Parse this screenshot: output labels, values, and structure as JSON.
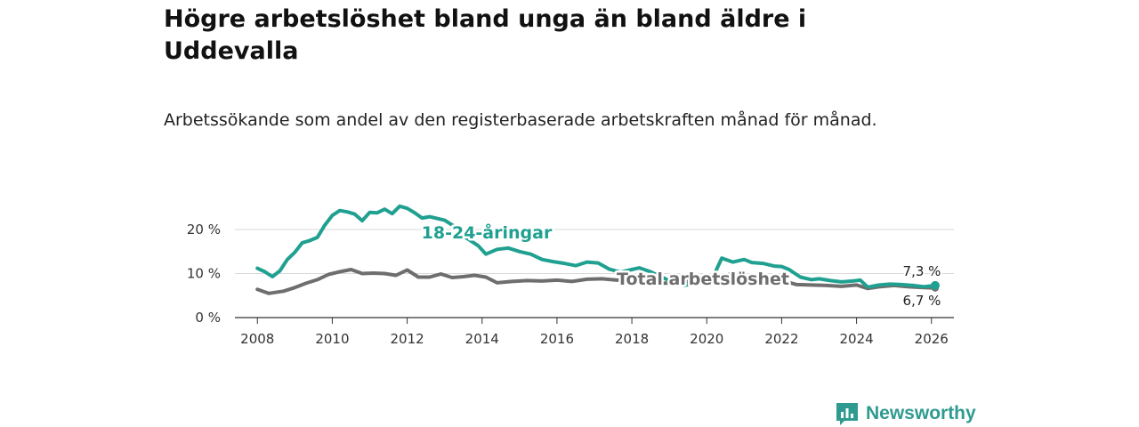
{
  "chart_data": {
    "type": "line",
    "title": "Högre arbetslöshet bland unga än bland äldre i Uddevalla",
    "subtitle": "Arbetssökande som andel av den registerbaserade arbetskraften månad för månad.",
    "xlabel": "",
    "ylabel": "",
    "x_ticks": [
      "2008",
      "2010",
      "2012",
      "2014",
      "2016",
      "2018",
      "2020",
      "2022",
      "2024",
      "2026"
    ],
    "y_ticks": [
      "0 %",
      "10 %",
      "20 %"
    ],
    "xlim": [
      2007.4,
      2026.6
    ],
    "ylim": [
      0,
      20
    ],
    "x_tick_values": [
      2008,
      2010,
      2012,
      2014,
      2016,
      2018,
      2020,
      2022,
      2024,
      2026
    ],
    "y_tick_values": [
      0,
      10,
      20
    ],
    "series": [
      {
        "name": "Total arbetslöshet",
        "label": "Total arbetslöshet",
        "color": "#6e6e6e",
        "end_label": "6,7 %",
        "points": [
          [
            2008.0,
            6.4
          ],
          [
            2008.3,
            5.5
          ],
          [
            2008.7,
            6.0
          ],
          [
            2009.0,
            6.8
          ],
          [
            2009.3,
            7.8
          ],
          [
            2009.6,
            8.6
          ],
          [
            2009.9,
            9.8
          ],
          [
            2010.2,
            10.4
          ],
          [
            2010.5,
            10.9
          ],
          [
            2010.8,
            10.0
          ],
          [
            2011.1,
            10.1
          ],
          [
            2011.4,
            10.0
          ],
          [
            2011.7,
            9.6
          ],
          [
            2012.0,
            10.8
          ],
          [
            2012.3,
            9.2
          ],
          [
            2012.6,
            9.2
          ],
          [
            2012.9,
            9.9
          ],
          [
            2013.2,
            9.1
          ],
          [
            2013.5,
            9.3
          ],
          [
            2013.8,
            9.6
          ],
          [
            2014.1,
            9.2
          ],
          [
            2014.4,
            7.9
          ],
          [
            2014.8,
            8.2
          ],
          [
            2015.2,
            8.4
          ],
          [
            2015.6,
            8.3
          ],
          [
            2016.0,
            8.5
          ],
          [
            2016.4,
            8.2
          ],
          [
            2016.8,
            8.7
          ],
          [
            2017.2,
            8.8
          ],
          [
            2017.6,
            8.5
          ],
          [
            2018.0,
            8.6
          ],
          [
            2018.4,
            8.1
          ],
          [
            2018.8,
            7.8
          ],
          [
            2019.2,
            7.9
          ],
          [
            2019.6,
            8.3
          ],
          [
            2020.0,
            8.6
          ],
          [
            2020.3,
            9.1
          ],
          [
            2020.6,
            9.8
          ],
          [
            2020.9,
            9.5
          ],
          [
            2021.2,
            9.2
          ],
          [
            2021.5,
            8.9
          ],
          [
            2021.8,
            8.6
          ],
          [
            2022.1,
            8.2
          ],
          [
            2022.4,
            7.5
          ],
          [
            2022.8,
            7.4
          ],
          [
            2023.2,
            7.3
          ],
          [
            2023.6,
            7.1
          ],
          [
            2024.0,
            7.4
          ],
          [
            2024.3,
            6.6
          ],
          [
            2024.6,
            7.0
          ],
          [
            2025.0,
            7.3
          ],
          [
            2025.4,
            7.0
          ],
          [
            2025.8,
            6.8
          ],
          [
            2026.1,
            6.7
          ]
        ]
      },
      {
        "name": "18-24-åringar",
        "label": "18-24-åringar",
        "color": "#1fa090",
        "end_label": "7,3 %",
        "points": [
          [
            2008.0,
            11.2
          ],
          [
            2008.2,
            10.4
          ],
          [
            2008.4,
            9.3
          ],
          [
            2008.6,
            10.6
          ],
          [
            2008.8,
            13.2
          ],
          [
            2009.0,
            14.8
          ],
          [
            2009.2,
            17.0
          ],
          [
            2009.4,
            17.5
          ],
          [
            2009.6,
            18.2
          ],
          [
            2009.8,
            21.0
          ],
          [
            2010.0,
            23.2
          ],
          [
            2010.2,
            24.3
          ],
          [
            2010.4,
            24.0
          ],
          [
            2010.6,
            23.5
          ],
          [
            2010.8,
            22.0
          ],
          [
            2011.0,
            23.9
          ],
          [
            2011.2,
            23.8
          ],
          [
            2011.4,
            24.6
          ],
          [
            2011.6,
            23.6
          ],
          [
            2011.8,
            25.3
          ],
          [
            2012.0,
            24.8
          ],
          [
            2012.2,
            23.8
          ],
          [
            2012.4,
            22.6
          ],
          [
            2012.6,
            22.9
          ],
          [
            2012.8,
            22.5
          ],
          [
            2013.0,
            22.1
          ],
          [
            2013.3,
            20.5
          ],
          [
            2013.6,
            18.0
          ],
          [
            2013.9,
            16.3
          ],
          [
            2014.1,
            14.4
          ],
          [
            2014.4,
            15.5
          ],
          [
            2014.7,
            15.8
          ],
          [
            2015.0,
            15.0
          ],
          [
            2015.3,
            14.4
          ],
          [
            2015.6,
            13.2
          ],
          [
            2015.9,
            12.7
          ],
          [
            2016.2,
            12.3
          ],
          [
            2016.5,
            11.8
          ],
          [
            2016.8,
            12.6
          ],
          [
            2017.1,
            12.4
          ],
          [
            2017.4,
            11.0
          ],
          [
            2017.7,
            10.3
          ],
          [
            2018.0,
            10.9
          ],
          [
            2018.2,
            11.3
          ],
          [
            2018.5,
            10.4
          ],
          [
            2018.8,
            9.2
          ],
          [
            2019.1,
            8.0
          ],
          [
            2019.4,
            7.3
          ],
          [
            2019.7,
            7.9
          ],
          [
            2020.0,
            8.9
          ],
          [
            2020.2,
            9.8
          ],
          [
            2020.4,
            13.5
          ],
          [
            2020.7,
            12.6
          ],
          [
            2021.0,
            13.2
          ],
          [
            2021.2,
            12.5
          ],
          [
            2021.5,
            12.3
          ],
          [
            2021.8,
            11.7
          ],
          [
            2022.0,
            11.6
          ],
          [
            2022.2,
            10.9
          ],
          [
            2022.5,
            9.2
          ],
          [
            2022.8,
            8.6
          ],
          [
            2023.0,
            8.8
          ],
          [
            2023.3,
            8.4
          ],
          [
            2023.6,
            8.1
          ],
          [
            2023.9,
            8.3
          ],
          [
            2024.1,
            8.5
          ],
          [
            2024.3,
            6.9
          ],
          [
            2024.6,
            7.4
          ],
          [
            2024.9,
            7.6
          ],
          [
            2025.2,
            7.5
          ],
          [
            2025.5,
            7.3
          ],
          [
            2025.8,
            7.0
          ],
          [
            2026.1,
            7.3
          ]
        ]
      }
    ]
  },
  "brand": {
    "name": "Newsworthy"
  }
}
